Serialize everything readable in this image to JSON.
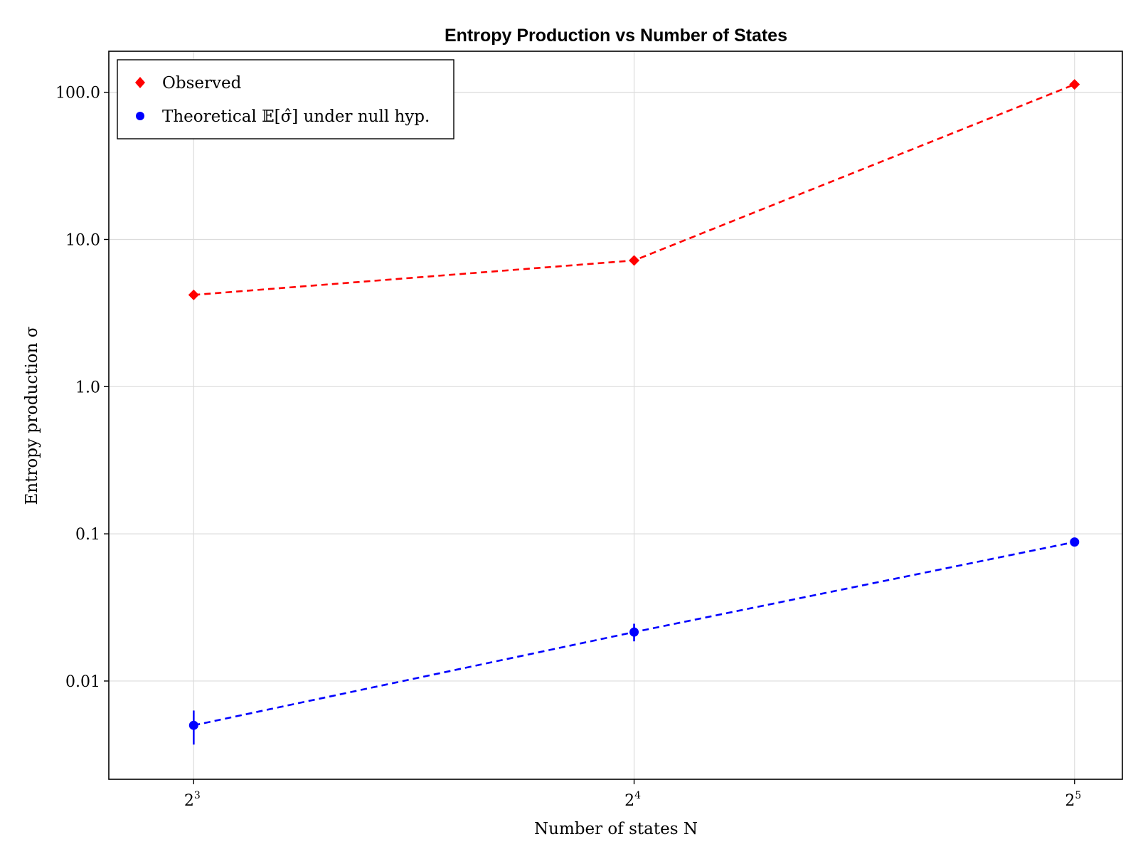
{
  "chart_data": {
    "type": "line",
    "title": "Entropy Production vs Number of States",
    "xlabel": "Number of states N",
    "ylabel": "Entropy production σ",
    "x_scale": "log2",
    "y_scale": "log10",
    "x": [
      8,
      16,
      32
    ],
    "x_tick_labels": [
      {
        "base": "2",
        "exp": "3",
        "value": 8
      },
      {
        "base": "2",
        "exp": "4",
        "value": 16
      },
      {
        "base": "2",
        "exp": "5",
        "value": 32
      }
    ],
    "y_tick_labels": [
      {
        "label": "0.01",
        "value": 0.01
      },
      {
        "label": "0.1",
        "value": 0.1
      },
      {
        "label": "1.0",
        "value": 1
      },
      {
        "label": "10.0",
        "value": 10
      },
      {
        "label": "100.0",
        "value": 100
      }
    ],
    "xlim": [
      7.0,
      34.5
    ],
    "ylim": [
      0.00215,
      190
    ],
    "grid": true,
    "legend_position": "top-left",
    "series": [
      {
        "name": "Observed",
        "marker": "diamond",
        "line_style": "dashed",
        "color": "#ff0000",
        "values": [
          4.2,
          7.2,
          113
        ]
      },
      {
        "name": "Theoretical 𝔼[σ̂] under null hyp.",
        "marker": "circle",
        "line_style": "dashed",
        "color": "#0000ff",
        "values": [
          0.005,
          0.0215,
          0.088
        ],
        "error_low": [
          0.0037,
          0.0186,
          0.0865
        ],
        "error_high": [
          0.0063,
          0.0245,
          0.0895
        ]
      }
    ]
  }
}
